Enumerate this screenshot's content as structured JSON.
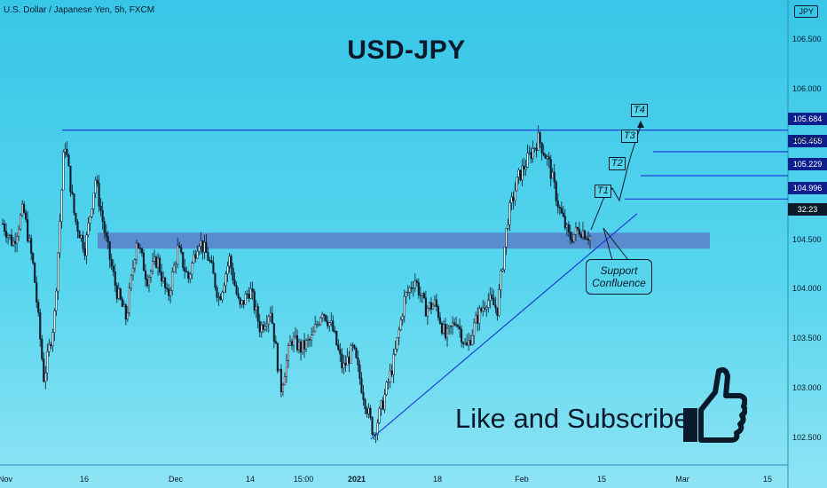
{
  "header": {
    "symbol_info": "U.S. Dollar / Japanese Yen, 5h, FXCM",
    "currency_badge": "JPY"
  },
  "annotations": {
    "big_title": "USD-JPY",
    "like_text": "Like and Subscribe",
    "callout_line1": "Support",
    "callout_line2": "Confluence",
    "targets": [
      "T1",
      "T2",
      "T3",
      "T4"
    ],
    "timer": "32:23"
  },
  "colors": {
    "background": "#45cdea",
    "level_line": "#1b3fd6",
    "label_bg": "#0d1f8c",
    "zone": "#5b74c4",
    "candles": "#0b1a2a"
  },
  "icons": [
    "thumbs-up-icon"
  ],
  "chart_data": {
    "type": "candlestick",
    "title": "USD-JPY",
    "ylim": [
      102.35,
      106.85
    ],
    "y_ticks": [
      "106.500",
      "106.000",
      "105.500",
      "105.000",
      "104.500",
      "104.000",
      "103.500",
      "103.000",
      "102.500"
    ],
    "x_ticks": [
      {
        "label": "Nov",
        "bold": false
      },
      {
        "label": "16",
        "bold": false
      },
      {
        "label": "Dec",
        "bold": false
      },
      {
        "label": "14",
        "bold": false
      },
      {
        "label": "15:00",
        "bold": false
      },
      {
        "label": "2021",
        "bold": true
      },
      {
        "label": "18",
        "bold": false
      },
      {
        "label": "Feb",
        "bold": false
      },
      {
        "label": "15",
        "bold": false
      },
      {
        "label": "Mar",
        "bold": false
      },
      {
        "label": "15",
        "bold": false
      }
    ],
    "price_path": [
      104.75,
      104.55,
      104.9,
      104.3,
      103.2,
      103.8,
      105.6,
      104.8,
      104.5,
      105.2,
      104.6,
      104.1,
      103.8,
      104.6,
      104.2,
      104.4,
      104.0,
      104.5,
      104.2,
      104.6,
      104.4,
      104.0,
      104.4,
      103.9,
      104.1,
      103.7,
      103.9,
      103.1,
      103.6,
      103.5,
      103.6,
      103.9,
      103.7,
      103.3,
      103.5,
      103.05,
      102.65,
      103.0,
      103.4,
      104.0,
      104.2,
      103.9,
      103.95,
      103.6,
      103.8,
      103.5,
      103.8,
      104.0,
      103.9,
      104.8,
      105.2,
      105.4,
      105.6,
      105.35,
      104.9,
      104.6,
      104.7,
      104.62
    ],
    "levels": [
      {
        "label": "T4",
        "price": 105.684
      },
      {
        "label": "T3",
        "price": 105.468
      },
      {
        "label": "T2",
        "price": 105.229
      },
      {
        "label": "T1",
        "price": 104.996
      }
    ],
    "level_labels": [
      "105.684",
      "105.468",
      "105.229",
      "104.996"
    ],
    "support_zone": [
      104.5,
      104.66
    ],
    "support_trendline": [
      [
        102.6,
        104.85
      ]
    ]
  }
}
